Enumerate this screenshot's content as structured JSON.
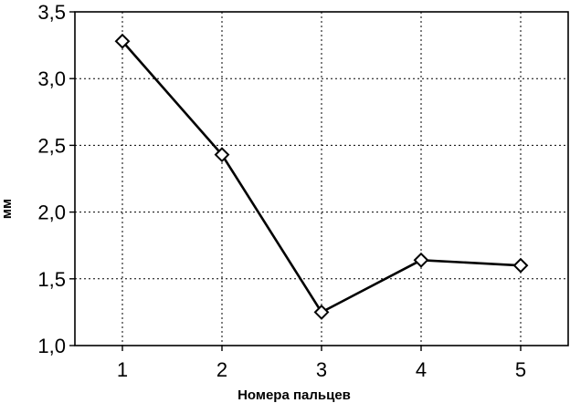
{
  "chart_data": {
    "type": "line",
    "x": [
      "1",
      "2",
      "3",
      "4",
      "5"
    ],
    "series": [
      {
        "values": [
          3.28,
          2.43,
          1.25,
          1.64,
          1.6
        ]
      }
    ],
    "xlabel": "Номера пальцев",
    "ylabel": "мм",
    "ylim": [
      1.0,
      3.5
    ],
    "yticks": [
      "1,0",
      "1,5",
      "2,0",
      "2,5",
      "3,0",
      "3,5"
    ],
    "grid": true,
    "marker": "diamond",
    "line_color": "#000000"
  }
}
